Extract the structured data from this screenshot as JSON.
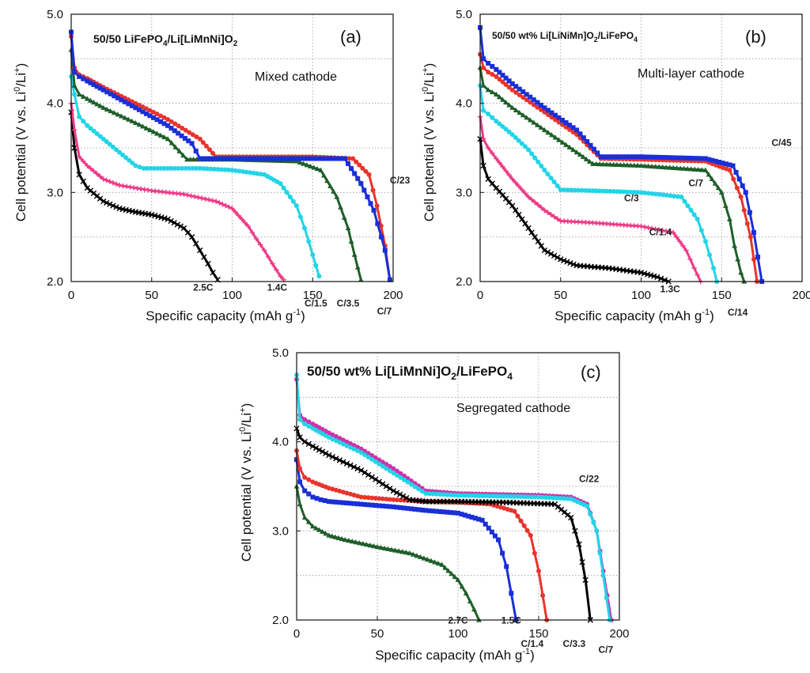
{
  "chart_data": [
    {
      "type": "line",
      "panel_label": "(a)",
      "title": "50/50 LiFePO4/Li[LiMnNi]O2",
      "note": "Mixed cathode",
      "xlabel": "Specific capacity (mAh g-1)",
      "ylabel": "Cell potential (V vs. Li0/Li+)",
      "xlim": [
        0,
        200
      ],
      "ylim": [
        2.0,
        5.0
      ],
      "xticks": [
        "0",
        "50",
        "100",
        "150",
        "200"
      ],
      "yticks": [
        "2.0",
        "3.0",
        "4.0",
        "5.0"
      ],
      "series": [
        {
          "name": "2.5C",
          "color": "#000000",
          "marker": "x",
          "x": [
            0,
            2,
            5,
            10,
            20,
            30,
            40,
            50,
            60,
            70,
            75,
            80,
            85,
            88,
            91
          ],
          "y": [
            3.9,
            3.5,
            3.2,
            3.05,
            2.9,
            2.82,
            2.78,
            2.75,
            2.7,
            2.6,
            2.5,
            2.35,
            2.2,
            2.1,
            2.02
          ]
        },
        {
          "name": "1.4C",
          "color": "#ee3a87",
          "marker": "+",
          "x": [
            0,
            2,
            5,
            10,
            20,
            30,
            50,
            70,
            90,
            100,
            110,
            115,
            120,
            125,
            130,
            132
          ],
          "y": [
            4.0,
            3.7,
            3.4,
            3.3,
            3.15,
            3.08,
            3.02,
            2.98,
            2.9,
            2.82,
            2.62,
            2.48,
            2.35,
            2.2,
            2.06,
            2.02
          ]
        },
        {
          "name": "C/1.5",
          "color": "#22d4e8",
          "marker": "o",
          "x": [
            0,
            2,
            5,
            10,
            20,
            30,
            40,
            45,
            60,
            80,
            100,
            120,
            130,
            140,
            145,
            150,
            154
          ],
          "y": [
            4.3,
            4.1,
            3.85,
            3.75,
            3.6,
            3.45,
            3.3,
            3.27,
            3.27,
            3.27,
            3.25,
            3.2,
            3.1,
            2.85,
            2.6,
            2.3,
            2.06
          ]
        },
        {
          "name": "C/3.5",
          "color": "#1f5f2a",
          "marker": "^",
          "x": [
            0,
            2,
            5,
            10,
            20,
            40,
            60,
            72,
            80,
            100,
            120,
            140,
            155,
            165,
            172,
            176,
            180
          ],
          "y": [
            4.6,
            4.2,
            4.1,
            4.05,
            3.95,
            3.78,
            3.6,
            3.37,
            3.37,
            3.37,
            3.36,
            3.35,
            3.25,
            2.95,
            2.6,
            2.3,
            2.02
          ]
        },
        {
          "name": "C/23",
          "color": "#e8342c",
          "marker": "o",
          "x": [
            0,
            2,
            5,
            10,
            20,
            40,
            60,
            80,
            90,
            100,
            120,
            150,
            175,
            185,
            190,
            195,
            198
          ],
          "y": [
            4.75,
            4.4,
            4.32,
            4.28,
            4.18,
            4.0,
            3.82,
            3.6,
            3.4,
            3.4,
            3.4,
            3.4,
            3.38,
            3.2,
            2.85,
            2.4,
            2.02
          ]
        },
        {
          "name": "C/7",
          "color": "#1a2fd6",
          "marker": "s",
          "x": [
            0,
            2,
            5,
            10,
            20,
            40,
            60,
            75,
            80,
            100,
            120,
            150,
            170,
            180,
            188,
            195,
            198
          ],
          "y": [
            4.8,
            4.35,
            4.3,
            4.25,
            4.15,
            3.95,
            3.75,
            3.55,
            3.38,
            3.38,
            3.38,
            3.38,
            3.38,
            3.1,
            2.8,
            2.35,
            2.02
          ]
        }
      ],
      "rate_labels": [
        "2.5C",
        "1.4C",
        "C/1.5",
        "C/3.5",
        "C/23",
        "C/7"
      ]
    },
    {
      "type": "line",
      "panel_label": "(b)",
      "title": "50/50 wt% Li[LiNiMn]O2/LiFePO4",
      "note": "Multi-layer cathode",
      "xlabel": "Specific capacity (mAh g-1)",
      "ylabel": "Cell potential (V vs. Li0/Li+)",
      "xlim": [
        0,
        200
      ],
      "ylim": [
        2.0,
        5.0
      ],
      "xticks": [
        "0",
        "50",
        "100",
        "150",
        "200"
      ],
      "yticks": [
        "2.0",
        "3.0",
        "4.0",
        "5.0"
      ],
      "series": [
        {
          "name": "1.3C",
          "color": "#000000",
          "marker": "x",
          "x": [
            0,
            2,
            5,
            10,
            20,
            30,
            40,
            50,
            60,
            80,
            100,
            110,
            117
          ],
          "y": [
            3.6,
            3.3,
            3.15,
            3.05,
            2.85,
            2.6,
            2.35,
            2.25,
            2.18,
            2.15,
            2.1,
            2.05,
            2.0
          ]
        },
        {
          "name": "C/1.4",
          "color": "#ee3a87",
          "marker": "+",
          "x": [
            0,
            2,
            5,
            10,
            20,
            30,
            40,
            50,
            70,
            100,
            120,
            128,
            133,
            137
          ],
          "y": [
            3.85,
            3.6,
            3.5,
            3.38,
            3.15,
            2.95,
            2.8,
            2.68,
            2.66,
            2.62,
            2.55,
            2.35,
            2.15,
            2.0
          ]
        },
        {
          "name": "C/3",
          "color": "#22d4e8",
          "marker": "o",
          "x": [
            0,
            2,
            5,
            10,
            20,
            30,
            40,
            50,
            70,
            100,
            125,
            135,
            140,
            145,
            147
          ],
          "y": [
            4.2,
            3.92,
            3.88,
            3.8,
            3.65,
            3.48,
            3.25,
            3.03,
            3.02,
            3.0,
            2.95,
            2.7,
            2.45,
            2.15,
            2.0
          ]
        },
        {
          "name": "C/7",
          "color": "#1f5f2a",
          "marker": "^",
          "x": [
            0,
            2,
            5,
            10,
            20,
            40,
            60,
            70,
            100,
            140,
            150,
            155,
            158,
            162,
            164
          ],
          "y": [
            4.4,
            4.2,
            4.15,
            4.1,
            3.95,
            3.7,
            3.45,
            3.32,
            3.3,
            3.25,
            3.0,
            2.7,
            2.4,
            2.1,
            2.0
          ]
        },
        {
          "name": "C/14",
          "color": "#e8342c",
          "marker": "o",
          "x": [
            0,
            2,
            5,
            10,
            20,
            40,
            60,
            75,
            100,
            140,
            155,
            162,
            168,
            172
          ],
          "y": [
            4.55,
            4.4,
            4.35,
            4.3,
            4.15,
            3.9,
            3.65,
            3.38,
            3.37,
            3.35,
            3.25,
            2.95,
            2.5,
            2.0
          ]
        },
        {
          "name": "C/45",
          "color": "#1a2fd6",
          "marker": "s",
          "x": [
            0,
            2,
            5,
            10,
            20,
            40,
            60,
            75,
            100,
            140,
            157,
            165,
            170,
            175
          ],
          "y": [
            4.85,
            4.5,
            4.45,
            4.38,
            4.22,
            3.95,
            3.7,
            3.4,
            3.4,
            3.38,
            3.3,
            3.0,
            2.55,
            2.0
          ]
        }
      ],
      "rate_labels": [
        "1.3C",
        "C/1.4",
        "C/3",
        "C/7",
        "C/14",
        "C/45"
      ]
    },
    {
      "type": "line",
      "panel_label": "(c)",
      "title": "50/50 wt% Li[LiMnNi]O2/LiFePO4",
      "note": "Segregated cathode",
      "xlabel": "Specific capacity (mAh g-1)",
      "ylabel": "Cell potential (V vs. Li0/Li+)",
      "xlim": [
        0,
        200
      ],
      "ylim": [
        2.0,
        5.0
      ],
      "xticks": [
        "0",
        "50",
        "100",
        "150",
        "200"
      ],
      "yticks": [
        "2.0",
        "3.0",
        "4.0",
        "5.0"
      ],
      "series": [
        {
          "name": "2.7C",
          "color": "#1f5f2a",
          "marker": "^",
          "x": [
            0,
            2,
            5,
            10,
            20,
            30,
            50,
            70,
            90,
            100,
            105,
            110,
            113
          ],
          "y": [
            3.5,
            3.3,
            3.15,
            3.05,
            2.95,
            2.9,
            2.82,
            2.75,
            2.62,
            2.45,
            2.3,
            2.12,
            2.0
          ]
        },
        {
          "name": "1.5C",
          "color": "#1a2fd6",
          "marker": "s",
          "x": [
            0,
            2,
            5,
            10,
            15,
            20,
            40,
            60,
            80,
            100,
            115,
            125,
            130,
            133,
            136
          ],
          "y": [
            3.8,
            3.55,
            3.45,
            3.38,
            3.35,
            3.33,
            3.3,
            3.27,
            3.23,
            3.2,
            3.12,
            2.9,
            2.6,
            2.3,
            2.0
          ]
        },
        {
          "name": "C/1.4",
          "color": "#e8342c",
          "marker": "o",
          "x": [
            0,
            2,
            5,
            10,
            20,
            40,
            60,
            80,
            100,
            120,
            135,
            145,
            150,
            155
          ],
          "y": [
            3.9,
            3.7,
            3.6,
            3.55,
            3.48,
            3.38,
            3.35,
            3.33,
            3.32,
            3.3,
            3.22,
            2.95,
            2.55,
            2.0
          ]
        },
        {
          "name": "C/3.3",
          "color": "#000000",
          "marker": "x",
          "x": [
            0,
            2,
            5,
            10,
            20,
            40,
            60,
            70,
            80,
            100,
            130,
            160,
            170,
            175,
            179,
            182
          ],
          "y": [
            4.15,
            4.05,
            4.0,
            3.95,
            3.85,
            3.68,
            3.45,
            3.35,
            3.33,
            3.33,
            3.32,
            3.3,
            3.15,
            2.85,
            2.45,
            2.0
          ]
        },
        {
          "name": "C/22",
          "color": "#cc33aa",
          "marker": "o",
          "x": [
            0,
            2,
            5,
            10,
            20,
            40,
            60,
            80,
            100,
            150,
            170,
            180,
            186,
            190,
            195
          ],
          "y": [
            4.7,
            4.3,
            4.25,
            4.2,
            4.1,
            3.92,
            3.7,
            3.45,
            3.42,
            3.4,
            3.38,
            3.3,
            3.0,
            2.55,
            2.0
          ]
        },
        {
          "name": "C/7",
          "color": "#22d4e8",
          "marker": "o",
          "x": [
            0,
            2,
            5,
            10,
            20,
            40,
            60,
            80,
            100,
            150,
            170,
            180,
            186,
            190,
            194
          ],
          "y": [
            4.75,
            4.25,
            4.2,
            4.15,
            4.05,
            3.88,
            3.65,
            3.42,
            3.4,
            3.38,
            3.36,
            3.28,
            3.0,
            2.5,
            2.0
          ]
        }
      ],
      "rate_labels": [
        "2.7C",
        "1.5C",
        "C/1.4",
        "C/3.3",
        "C/22",
        "C/7"
      ]
    }
  ]
}
